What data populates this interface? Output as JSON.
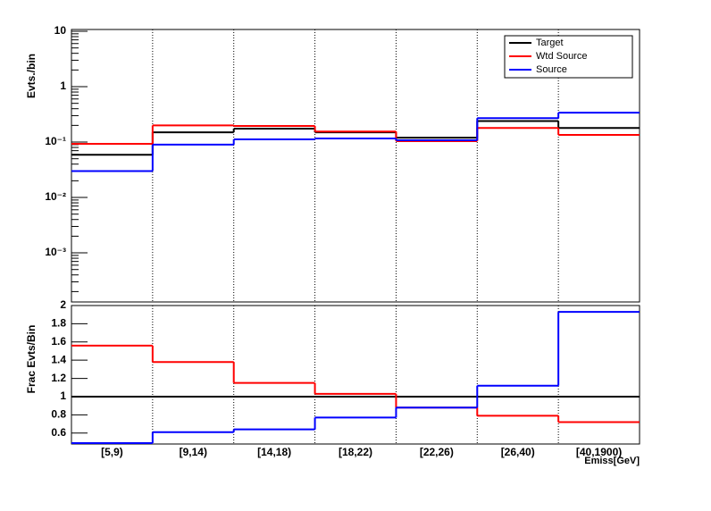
{
  "chart_data": [
    {
      "type": "step",
      "ylabel": "Evts./bin",
      "log": true,
      "ylim": [
        0.00013,
        10
      ],
      "yticks": [
        {
          "value": 0.001,
          "label": "10⁻³"
        },
        {
          "value": 0.01,
          "label": "10⁻²"
        },
        {
          "value": 0.1,
          "label": "10⁻¹"
        },
        1,
        10
      ],
      "grid_x": true,
      "legend": "top-right",
      "series": [
        {
          "name": "Target",
          "color": "#000000",
          "values": [
            0.059,
            0.15,
            0.175,
            0.15,
            0.12,
            0.24,
            0.18
          ]
        },
        {
          "name": "Wtd Source",
          "color": "#ff0000",
          "values": [
            0.093,
            0.2,
            0.195,
            0.155,
            0.104,
            0.18,
            0.135
          ]
        },
        {
          "name": "Source",
          "color": "#0000ff",
          "values": [
            0.03,
            0.09,
            0.112,
            0.116,
            0.108,
            0.27,
            0.34
          ]
        }
      ]
    },
    {
      "type": "step",
      "ylabel": "Frac Evts/Bin",
      "xlabel": "Emiss[GeV]",
      "categories": [
        "[5,9)",
        "[9,14)",
        "[14,18)",
        "[18,22)",
        "[22,26)",
        "[26,40)",
        "[40,1900)"
      ],
      "ylim": [
        0.48,
        2.0
      ],
      "yticks": [
        0.6,
        0.8,
        1,
        1.2,
        1.4,
        1.6,
        1.8,
        2
      ],
      "grid_x": true,
      "series": [
        {
          "color": "#000000",
          "values": [
            1,
            1,
            1,
            1,
            1,
            1,
            1
          ]
        },
        {
          "color": "#ff0000",
          "values": [
            1.56,
            1.38,
            1.15,
            1.03,
            0.88,
            0.79,
            0.72
          ]
        },
        {
          "color": "#0000ff",
          "values": [
            0.49,
            0.61,
            0.64,
            0.77,
            0.88,
            1.12,
            1.93
          ]
        }
      ]
    }
  ]
}
